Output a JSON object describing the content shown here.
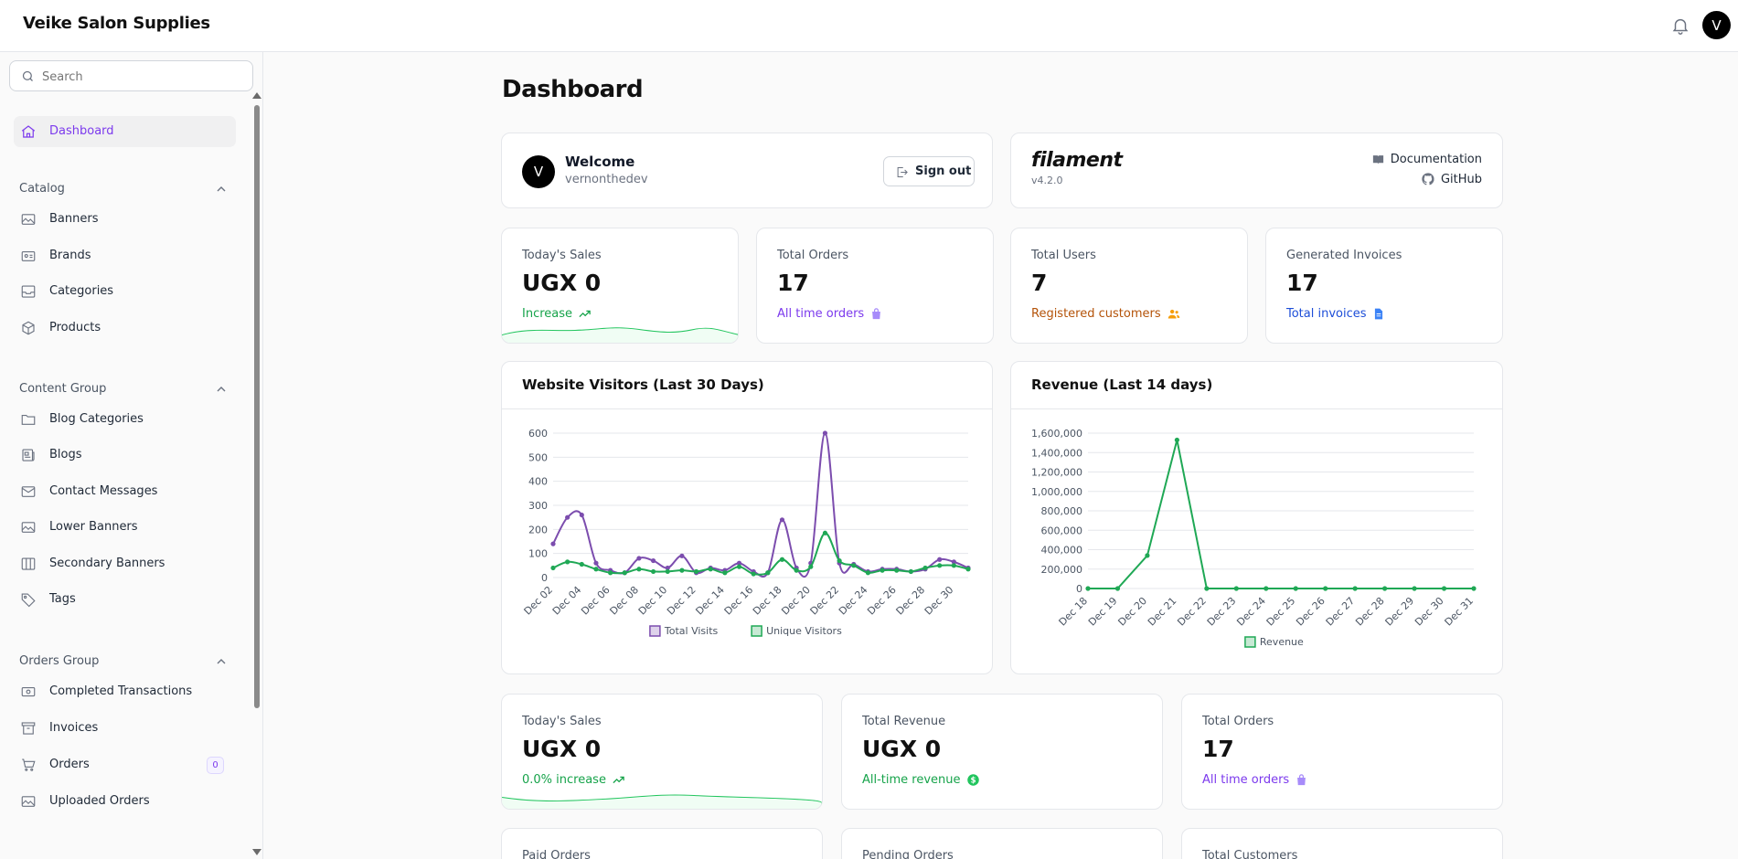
{
  "app": {
    "title": "Veike Salon Supplies",
    "user_initial": "V"
  },
  "search": {
    "placeholder": "Search"
  },
  "sidebar": {
    "dashboard": "Dashboard",
    "groups": [
      {
        "label": "Catalog",
        "items": [
          "Banners",
          "Brands",
          "Categories",
          "Products"
        ]
      },
      {
        "label": "Content Group",
        "items": [
          "Blog Categories",
          "Blogs",
          "Contact Messages",
          "Lower Banners",
          "Secondary Banners",
          "Tags"
        ]
      },
      {
        "label": "Orders Group",
        "items": [
          "Completed Transactions",
          "Invoices",
          "Orders",
          "Uploaded Orders"
        ]
      }
    ],
    "orders_badge": "0"
  },
  "page": {
    "title": "Dashboard"
  },
  "welcome": {
    "initial": "V",
    "title": "Welcome",
    "username": "vernonthedev",
    "signout": "Sign out"
  },
  "filament": {
    "logo": "filament",
    "version": "v4.2.0",
    "docs": "Documentation",
    "github": "GitHub"
  },
  "stats_row1": [
    {
      "label": "Today's Sales",
      "value": "UGX 0",
      "desc": "Increase",
      "color": "#16a34a",
      "icon": "trending-up-icon"
    },
    {
      "label": "Total Orders",
      "value": "17",
      "desc": "All time orders",
      "color": "#7c3aed",
      "icon": "shopping-bag-icon"
    },
    {
      "label": "Total Users",
      "value": "7",
      "desc": "Registered customers",
      "color": "#b45309",
      "icon": "users-icon"
    },
    {
      "label": "Generated Invoices",
      "value": "17",
      "desc": "Total invoices",
      "color": "#1d4ed8",
      "icon": "document-icon"
    }
  ],
  "stats_row2": [
    {
      "label": "Today's Sales",
      "value": "UGX 0",
      "desc": "0.0% increase",
      "color": "#16a34a",
      "icon": "trending-up-icon"
    },
    {
      "label": "Total Revenue",
      "value": "UGX 0",
      "desc": "All-time revenue",
      "color": "#16a34a",
      "icon": "currency-icon"
    },
    {
      "label": "Total Orders",
      "value": "17",
      "desc": "All time orders",
      "color": "#7c3aed",
      "icon": "shopping-bag-icon"
    }
  ],
  "stats_row3": [
    "Paid Orders",
    "Pending Orders",
    "Total Customers"
  ],
  "chart_data": [
    {
      "type": "line",
      "title": "Website Visitors (Last 30 Days)",
      "x": [
        "Dec 02",
        "Dec 03",
        "Dec 04",
        "Dec 05",
        "Dec 06",
        "Dec 07",
        "Dec 08",
        "Dec 09",
        "Dec 10",
        "Dec 11",
        "Dec 12",
        "Dec 13",
        "Dec 14",
        "Dec 15",
        "Dec 16",
        "Dec 17",
        "Dec 18",
        "Dec 19",
        "Dec 20",
        "Dec 21",
        "Dec 22",
        "Dec 23",
        "Dec 24",
        "Dec 25",
        "Dec 26",
        "Dec 27",
        "Dec 28",
        "Dec 29",
        "Dec 30",
        "Dec 31"
      ],
      "tick_labels": [
        "Dec 02",
        "Dec 04",
        "Dec 06",
        "Dec 08",
        "Dec 10",
        "Dec 12",
        "Dec 14",
        "Dec 16",
        "Dec 18",
        "Dec 20",
        "Dec 22",
        "Dec 24",
        "Dec 26",
        "Dec 28",
        "Dec 30"
      ],
      "ylim": [
        0,
        600
      ],
      "yticks": [
        0,
        100,
        200,
        300,
        400,
        500,
        600
      ],
      "series": [
        {
          "name": "Total Visits",
          "color": "#7c4dae",
          "values": [
            140,
            250,
            260,
            60,
            30,
            20,
            80,
            70,
            40,
            90,
            20,
            40,
            30,
            60,
            25,
            20,
            240,
            40,
            60,
            600,
            60,
            55,
            25,
            35,
            35,
            25,
            35,
            75,
            65,
            40
          ]
        },
        {
          "name": "Unique Visitors",
          "color": "#1fa855",
          "values": [
            40,
            65,
            55,
            35,
            20,
            20,
            35,
            25,
            25,
            30,
            25,
            35,
            20,
            45,
            15,
            20,
            75,
            30,
            45,
            185,
            70,
            50,
            20,
            30,
            30,
            25,
            40,
            50,
            50,
            35
          ]
        }
      ],
      "legend": "bottom"
    },
    {
      "type": "line",
      "title": "Revenue (Last 14 days)",
      "x": [
        "Dec 18",
        "Dec 19",
        "Dec 20",
        "Dec 21",
        "Dec 22",
        "Dec 23",
        "Dec 24",
        "Dec 25",
        "Dec 26",
        "Dec 27",
        "Dec 28",
        "Dec 29",
        "Dec 30",
        "Dec 31"
      ],
      "ylim": [
        0,
        1600000
      ],
      "yticks": [
        "0",
        "200,000",
        "400,000",
        "600,000",
        "800,000",
        "1,000,000",
        "1,200,000",
        "1,400,000",
        "1,600,000"
      ],
      "series": [
        {
          "name": "Revenue",
          "color": "#1fa855",
          "values": [
            0,
            0,
            340000,
            1530000,
            0,
            0,
            0,
            0,
            0,
            0,
            0,
            0,
            0,
            0
          ]
        }
      ],
      "legend": "bottom"
    }
  ]
}
